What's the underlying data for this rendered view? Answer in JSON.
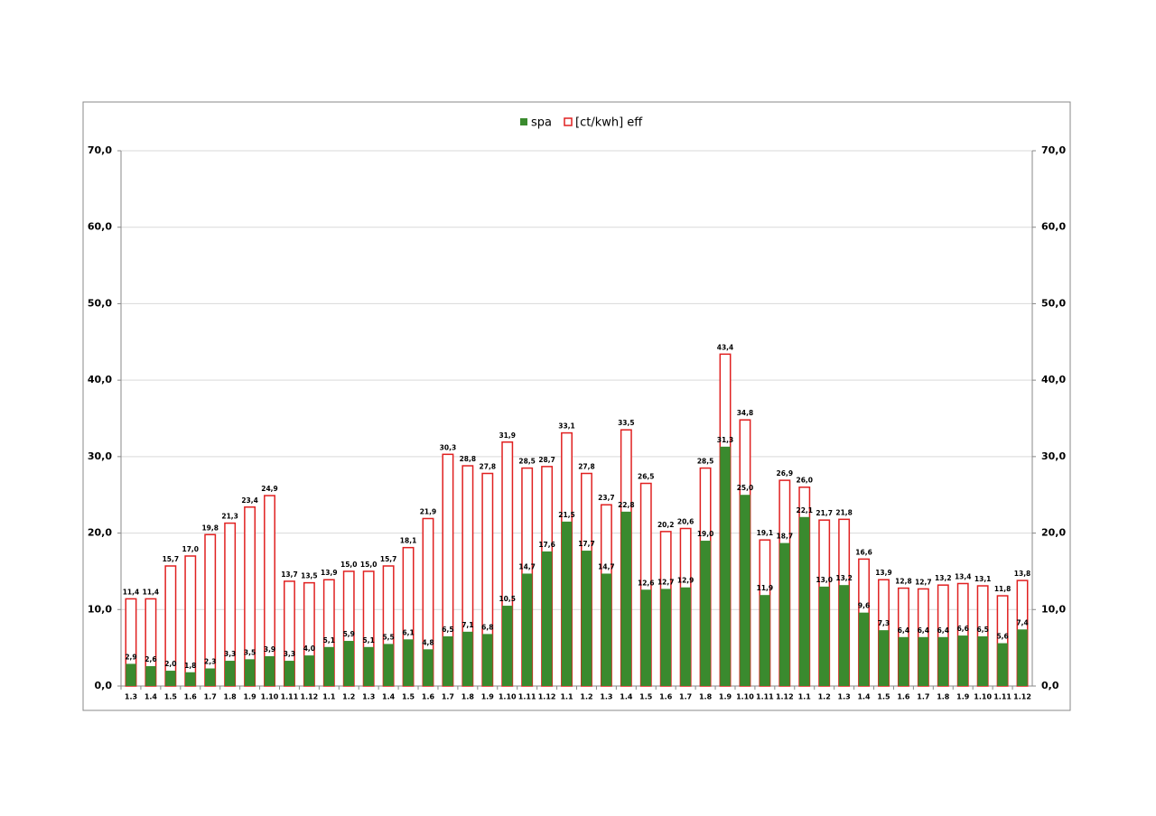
{
  "chart_data": {
    "type": "bar",
    "overlap": true,
    "categories": [
      "1.3",
      "1.4",
      "1.5",
      "1.6",
      "1.7",
      "1.8",
      "1.9",
      "1.10",
      "1.11",
      "1.12",
      "1.1",
      "1.2",
      "1.3",
      "1.4",
      "1.5",
      "1.6",
      "1.7",
      "1.8",
      "1.9",
      "1.10",
      "1.11",
      "1.12",
      "1.1",
      "1.2",
      "1.3",
      "1.4",
      "1.5",
      "1.6",
      "1.7",
      "1.8",
      "1.9",
      "1.10",
      "1.11",
      "1.12",
      "1.1",
      "1.2",
      "1.3",
      "1.4",
      "1.5",
      "1.6",
      "1.7",
      "1.8",
      "1.9",
      "1.10",
      "1.11",
      "1.12"
    ],
    "series": [
      {
        "name": "[ct/kwh] eff",
        "color": "#e02020",
        "fill": "#ffffff",
        "values": [
          11.4,
          11.4,
          15.7,
          17.0,
          19.8,
          21.3,
          23.4,
          24.9,
          13.7,
          13.5,
          13.9,
          15.0,
          15.0,
          15.7,
          18.1,
          21.9,
          30.3,
          28.8,
          27.8,
          31.9,
          28.5,
          28.7,
          33.1,
          27.8,
          23.7,
          33.5,
          26.5,
          20.2,
          20.6,
          28.5,
          43.4,
          34.8,
          19.1,
          26.9,
          26.0,
          21.7,
          21.8,
          16.6,
          13.9,
          12.8,
          12.7,
          13.2,
          13.4,
          13.1,
          11.8,
          13.8
        ],
        "value_labels": [
          "11,4",
          "11,4",
          "15,7",
          "17,0",
          "19,8",
          "21,3",
          "23,4",
          "24,9",
          "13,7",
          "13,5",
          "13,9",
          "15,0",
          "15,0",
          "15,7",
          "18,1",
          "21,9",
          "30,3",
          "28,8",
          "27,8",
          "31,9",
          "28,5",
          "28,7",
          "33,1",
          "27,8",
          "23,7",
          "33,5",
          "26,5",
          "20,2",
          "20,6",
          "28,5",
          "43,4",
          "34,8",
          "19,1",
          "26,9",
          "26,0",
          "21,7",
          "21,8",
          "16,6",
          "13,9",
          "12,8",
          "12,7",
          "13,2",
          "13,4",
          "13,1",
          "11,8",
          "13,8"
        ]
      },
      {
        "name": "spa",
        "color": "#3a8a2e",
        "fill": "#3a8a2e",
        "values": [
          2.9,
          2.6,
          2.0,
          1.8,
          2.3,
          3.3,
          3.5,
          3.9,
          3.3,
          4.0,
          5.1,
          5.9,
          5.1,
          5.5,
          6.1,
          4.8,
          6.5,
          7.1,
          6.8,
          10.5,
          14.7,
          17.6,
          21.5,
          17.7,
          14.7,
          22.8,
          12.6,
          12.7,
          12.9,
          19.0,
          31.3,
          25.0,
          11.9,
          18.7,
          22.1,
          13.0,
          13.2,
          9.6,
          7.3,
          6.4,
          6.4,
          6.4,
          6.6,
          6.5,
          5.6,
          7.4
        ],
        "value_labels": [
          "2,9",
          "2,6",
          "2,0",
          "1,8",
          "2,3",
          "3,3",
          "3,5",
          "3,9",
          "3,3",
          "4,0",
          "5,1",
          "5,9",
          "5,1",
          "5,5",
          "6,1",
          "4,8",
          "6,5",
          "7,1",
          "6,8",
          "10,5",
          "14,7",
          "17,6",
          "21,5",
          "17,7",
          "14,7",
          "22,8",
          "12,6",
          "12,7",
          "12,9",
          "19,0",
          "31,3",
          "25,0",
          "11,9",
          "18,7",
          "22,1",
          "13,0",
          "13,2",
          "9,6",
          "7,3",
          "6,4",
          "6,4",
          "6,4",
          "6,6",
          "6,5",
          "5,6",
          "7,4"
        ]
      }
    ],
    "legend_order": [
      1,
      0
    ],
    "ylim": [
      0,
      70
    ],
    "yticks": [
      {
        "value": 0,
        "label": "0,0"
      },
      {
        "value": 10,
        "label": "10,0"
      },
      {
        "value": 20,
        "label": "20,0"
      },
      {
        "value": 30,
        "label": "30,0"
      },
      {
        "value": 40,
        "label": "40,0"
      },
      {
        "value": 50,
        "label": "50,0"
      },
      {
        "value": 60,
        "label": "60,0"
      },
      {
        "value": 70,
        "label": "70,0"
      }
    ],
    "y2lim": [
      0,
      70
    ],
    "y2ticks": [
      {
        "value": 0,
        "label": "0,0"
      },
      {
        "value": 10,
        "label": "10,0"
      },
      {
        "value": 20,
        "label": "20,0"
      },
      {
        "value": 30,
        "label": "30,0"
      },
      {
        "value": 40,
        "label": "40,0"
      },
      {
        "value": 50,
        "label": "50,0"
      },
      {
        "value": 60,
        "label": "60,0"
      },
      {
        "value": 70,
        "label": "70,0"
      }
    ],
    "grid": true,
    "legend": "top"
  }
}
